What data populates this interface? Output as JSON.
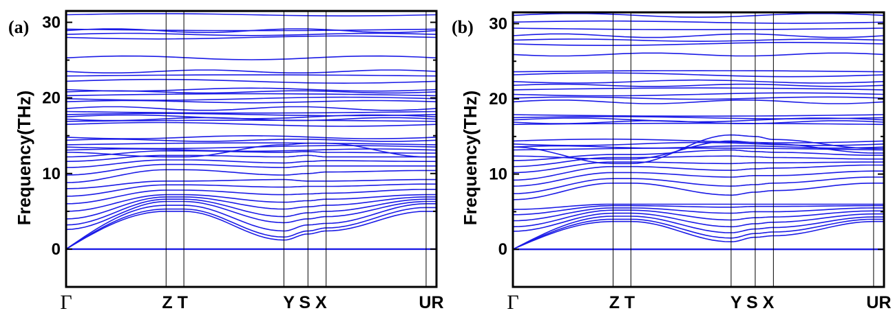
{
  "chart_data": [
    {
      "type": "line",
      "panel_label": "(a)",
      "ylabel": "Frequency(THz)",
      "ylim": [
        -5,
        31.5
      ],
      "yticks": [
        0,
        10,
        20,
        30
      ],
      "kpath": [
        {
          "label": "Γ",
          "pos": 0.0
        },
        {
          "label": "Z",
          "pos": 0.27
        },
        {
          "label": "T",
          "pos": 0.318
        },
        {
          "label": "Y",
          "pos": 0.588
        },
        {
          "label": "S",
          "pos": 0.653
        },
        {
          "label": "X",
          "pos": 0.702
        },
        {
          "label": "U",
          "pos": 0.972
        },
        {
          "label": "R",
          "pos": 1.0
        }
      ],
      "xtick_groups": [
        {
          "text": "Γ",
          "at": 0.0,
          "style": "gamma"
        },
        {
          "text": "Z T",
          "at": 0.294,
          "style": "bold"
        },
        {
          "text": "Y S X",
          "at": 0.645,
          "style": "bold"
        },
        {
          "text": "UR",
          "at": 0.986,
          "style": "bold"
        }
      ],
      "flat_bands_thz": [
        0,
        28.0,
        28.4,
        28.9,
        29.1,
        31.0,
        25.3,
        23.5,
        22.9,
        22.2,
        21.1,
        20.8,
        20.3,
        19.9,
        19.5,
        18.6,
        18.2,
        17.8,
        17.5,
        17.2,
        16.9,
        16.5,
        14.8,
        14.4,
        13.8,
        13.5,
        13.1
      ],
      "dispersive_bands_thz": [
        {
          "at": [
            0.0,
            0.27,
            0.318,
            0.588,
            0.653,
            0.702,
            0.972,
            1.0
          ],
          "values": [
            0,
            5.0,
            5.0,
            1.2,
            2.0,
            2.4,
            5.0,
            5.0
          ]
        },
        {
          "at": [
            0.0,
            0.27,
            0.318,
            0.588,
            0.653,
            0.702,
            0.972,
            1.0
          ],
          "values": [
            0,
            5.3,
            5.3,
            1.6,
            2.4,
            2.8,
            5.5,
            5.5
          ]
        },
        {
          "at": [
            0.0,
            0.27,
            0.318,
            0.588,
            0.653,
            0.702,
            0.972,
            1.0
          ],
          "values": [
            0,
            5.8,
            5.8,
            2.4,
            3.2,
            3.4,
            6.0,
            6.0
          ]
        },
        {
          "at": [
            0.0,
            0.27,
            0.318,
            0.588,
            0.653,
            0.702,
            0.972,
            1.0
          ],
          "values": [
            2.6,
            6.3,
            6.3,
            3.5,
            4.0,
            4.3,
            6.3,
            6.3
          ]
        },
        {
          "at": [
            0.0,
            0.27,
            0.318,
            0.588,
            0.653,
            0.702,
            0.972,
            1.0
          ],
          "values": [
            3.2,
            6.6,
            6.6,
            4.3,
            4.8,
            5.0,
            6.6,
            6.6
          ]
        },
        {
          "at": [
            0.0,
            0.27,
            0.318,
            0.588,
            0.653,
            0.702,
            0.972,
            1.0
          ],
          "values": [
            4.0,
            6.9,
            6.9,
            5.3,
            5.6,
            5.8,
            6.9,
            6.9
          ]
        },
        {
          "at": [
            0.0,
            0.27,
            0.318,
            0.588,
            0.653,
            0.702,
            0.972,
            1.0
          ],
          "values": [
            5.0,
            7.2,
            7.2,
            6.2,
            6.4,
            6.6,
            7.2,
            7.2
          ]
        },
        {
          "at": [
            0.0,
            0.27,
            0.318,
            0.588,
            0.653,
            0.702,
            0.972,
            1.0
          ],
          "values": [
            6.0,
            7.8,
            7.8,
            7.2,
            7.3,
            7.4,
            7.9,
            7.9
          ]
        },
        {
          "at": [
            0.0,
            0.27,
            0.318,
            0.588,
            0.653,
            0.702,
            0.972,
            1.0
          ],
          "values": [
            7.0,
            8.5,
            8.5,
            8.2,
            8.3,
            8.3,
            8.6,
            8.6
          ]
        },
        {
          "at": [
            0.0,
            0.27,
            0.318,
            0.588,
            0.653,
            0.702,
            0.972,
            1.0
          ],
          "values": [
            8.0,
            9.0,
            9.0,
            9.2,
            9.0,
            9.0,
            9.2,
            9.2
          ]
        },
        {
          "at": [
            0.0,
            0.27,
            0.318,
            0.588,
            0.653,
            0.702,
            0.972,
            1.0
          ],
          "values": [
            8.8,
            10.5,
            10.5,
            9.8,
            10.0,
            10.2,
            10.4,
            10.4
          ]
        },
        {
          "at": [
            0.0,
            0.27,
            0.318,
            0.588,
            0.653,
            0.702,
            0.972,
            1.0
          ],
          "values": [
            9.8,
            11.2,
            11.2,
            10.8,
            11.0,
            11.0,
            11.0,
            11.0
          ]
        },
        {
          "at": [
            0.0,
            0.27,
            0.318,
            0.588,
            0.653,
            0.702,
            0.972,
            1.0
          ],
          "values": [
            10.8,
            11.8,
            11.8,
            11.4,
            11.6,
            11.7,
            11.6,
            11.6
          ]
        },
        {
          "at": [
            0.0,
            0.27,
            0.318,
            0.588,
            0.653,
            0.702,
            0.972,
            1.0
          ],
          "values": [
            11.6,
            12.4,
            12.4,
            12.2,
            12.4,
            12.2,
            12.2,
            12.2
          ]
        },
        {
          "at": [
            0.0,
            0.27,
            0.318,
            0.588,
            0.653,
            0.702,
            0.972,
            1.0
          ],
          "values": [
            12.2,
            13.0,
            13.0,
            12.8,
            12.9,
            12.8,
            12.7,
            12.7
          ]
        },
        {
          "at": [
            0.0,
            0.27,
            0.318,
            0.588,
            0.653,
            0.702,
            0.972,
            1.0
          ],
          "values": [
            12.8,
            12.2,
            12.2,
            13.8,
            14.0,
            14.0,
            12.2,
            12.2
          ]
        }
      ]
    },
    {
      "type": "line",
      "panel_label": "(b)",
      "ylabel": "Frequency(THz)",
      "ylim": [
        -5,
        31.5
      ],
      "yticks": [
        0,
        10,
        20,
        30
      ],
      "kpath": [
        {
          "label": "Γ",
          "pos": 0.0
        },
        {
          "label": "Z",
          "pos": 0.27
        },
        {
          "label": "T",
          "pos": 0.318
        },
        {
          "label": "Y",
          "pos": 0.588
        },
        {
          "label": "S",
          "pos": 0.653
        },
        {
          "label": "X",
          "pos": 0.702
        },
        {
          "label": "U",
          "pos": 0.972
        },
        {
          "label": "R",
          "pos": 1.0
        }
      ],
      "xtick_groups": [
        {
          "text": "Γ",
          "at": 0.0,
          "style": "gamma"
        },
        {
          "text": "Z T",
          "at": 0.294,
          "style": "bold"
        },
        {
          "text": "Y S X",
          "at": 0.645,
          "style": "bold"
        },
        {
          "text": "UR",
          "at": 0.986,
          "style": "bold"
        }
      ],
      "flat_bands_thz": [
        0,
        27.3,
        27.8,
        28.4,
        29.4,
        30.2,
        31.1,
        25.9,
        23.6,
        23.2,
        22.3,
        21.8,
        21.2,
        20.6,
        20.1,
        19.6,
        17.9,
        17.5,
        17.2,
        16.9,
        16.6,
        14.4,
        14.0,
        13.6,
        13.2
      ],
      "dispersive_bands_thz": [
        {
          "at": [
            0.0,
            0.27,
            0.318,
            0.588,
            0.653,
            0.702,
            0.972,
            1.0
          ],
          "values": [
            0,
            3.7,
            3.7,
            1.0,
            1.6,
            1.8,
            3.7,
            3.7
          ]
        },
        {
          "at": [
            0.0,
            0.27,
            0.318,
            0.588,
            0.653,
            0.702,
            0.972,
            1.0
          ],
          "values": [
            0,
            4.0,
            4.0,
            1.5,
            2.1,
            2.3,
            4.0,
            4.0
          ]
        },
        {
          "at": [
            0.0,
            0.27,
            0.318,
            0.588,
            0.653,
            0.702,
            0.972,
            1.0
          ],
          "values": [
            0,
            4.4,
            4.4,
            2.2,
            2.7,
            2.9,
            4.3,
            4.3
          ]
        },
        {
          "at": [
            0.0,
            0.27,
            0.318,
            0.588,
            0.653,
            0.702,
            0.972,
            1.0
          ],
          "values": [
            2.4,
            4.8,
            4.8,
            3.0,
            3.4,
            3.6,
            4.7,
            4.7
          ]
        },
        {
          "at": [
            0.0,
            0.27,
            0.318,
            0.588,
            0.653,
            0.702,
            0.972,
            1.0
          ],
          "values": [
            3.0,
            5.2,
            5.2,
            3.9,
            4.2,
            4.3,
            5.1,
            5.1
          ]
        },
        {
          "at": [
            0.0,
            0.27,
            0.318,
            0.588,
            0.653,
            0.702,
            0.972,
            1.0
          ],
          "values": [
            3.8,
            5.5,
            5.5,
            4.8,
            5.0,
            5.0,
            5.5,
            5.5
          ]
        },
        {
          "at": [
            0.0,
            0.27,
            0.318,
            0.588,
            0.653,
            0.702,
            0.972,
            1.0
          ],
          "values": [
            4.6,
            5.8,
            5.8,
            5.6,
            5.7,
            5.7,
            5.8,
            5.8
          ]
        },
        {
          "at": [
            0.0,
            0.27,
            0.318,
            0.588,
            0.653,
            0.702,
            0.972,
            1.0
          ],
          "values": [
            5.3,
            6.0,
            6.0,
            6.0,
            6.0,
            6.0,
            6.0,
            6.0
          ]
        },
        {
          "at": [
            0.0,
            0.27,
            0.318,
            0.588,
            0.653,
            0.702,
            0.972,
            1.0
          ],
          "values": [
            6.6,
            8.8,
            8.8,
            7.2,
            7.6,
            7.8,
            8.8,
            8.8
          ]
        },
        {
          "at": [
            0.0,
            0.27,
            0.318,
            0.588,
            0.653,
            0.702,
            0.972,
            1.0
          ],
          "values": [
            7.4,
            9.4,
            9.4,
            8.4,
            8.6,
            8.8,
            9.6,
            9.6
          ]
        },
        {
          "at": [
            0.0,
            0.27,
            0.318,
            0.588,
            0.653,
            0.702,
            0.972,
            1.0
          ],
          "values": [
            8.4,
            10.2,
            10.2,
            9.6,
            9.8,
            9.8,
            10.4,
            10.4
          ]
        },
        {
          "at": [
            0.0,
            0.27,
            0.318,
            0.588,
            0.653,
            0.702,
            0.972,
            1.0
          ],
          "values": [
            9.2,
            11.0,
            11.0,
            10.5,
            10.7,
            10.8,
            11.2,
            11.2
          ]
        },
        {
          "at": [
            0.0,
            0.27,
            0.318,
            0.588,
            0.653,
            0.702,
            0.972,
            1.0
          ],
          "values": [
            10.2,
            11.6,
            11.6,
            11.4,
            11.5,
            11.5,
            11.6,
            11.6
          ]
        },
        {
          "at": [
            0.0,
            0.27,
            0.318,
            0.588,
            0.653,
            0.702,
            0.972,
            1.0
          ],
          "values": [
            11.0,
            12.2,
            12.2,
            12.4,
            12.3,
            12.2,
            12.0,
            12.0
          ]
        },
        {
          "at": [
            0.0,
            0.27,
            0.318,
            0.588,
            0.653,
            0.702,
            0.972,
            1.0
          ],
          "values": [
            11.8,
            12.6,
            12.6,
            13.2,
            13.0,
            12.9,
            12.5,
            12.5
          ]
        },
        {
          "at": [
            0.0,
            0.27,
            0.318,
            0.588,
            0.653,
            0.702,
            0.972,
            1.0
          ],
          "values": [
            12.4,
            12.0,
            12.0,
            14.4,
            14.2,
            14.0,
            12.8,
            12.8
          ]
        },
        {
          "at": [
            0.0,
            0.27,
            0.318,
            0.588,
            0.653,
            0.702,
            0.972,
            1.0
          ],
          "values": [
            13.6,
            11.4,
            11.4,
            15.2,
            15.0,
            14.6,
            13.4,
            13.4
          ]
        }
      ]
    }
  ],
  "colors": {
    "band": "#1a1ae6",
    "frame": "#000000",
    "kline": "#000000"
  }
}
